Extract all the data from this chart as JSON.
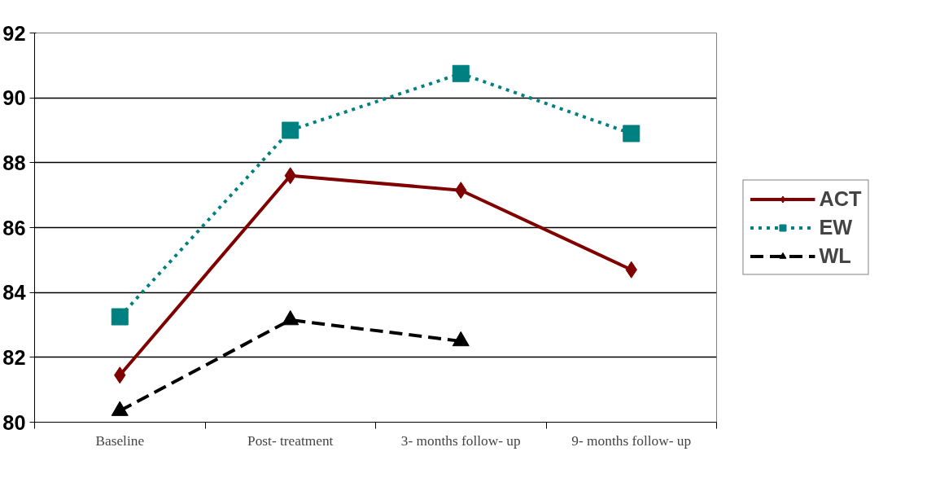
{
  "chart_data": {
    "type": "line",
    "categories": [
      "Baseline",
      "Post- treatment",
      "3- months follow- up",
      "9- months follow- up"
    ],
    "series": [
      {
        "name": "ACT",
        "color": "#800000",
        "values": [
          81.45,
          87.6,
          87.15,
          84.7
        ],
        "marker": "diamond",
        "line_style": "solid"
      },
      {
        "name": "EW",
        "color": "#008080",
        "values": [
          83.25,
          89.0,
          90.75,
          88.9
        ],
        "marker": "square",
        "line_style": "dotted"
      },
      {
        "name": "WL",
        "color": "#000000",
        "values": [
          80.35,
          83.15,
          82.5,
          null
        ],
        "marker": "triangle",
        "line_style": "dashed"
      }
    ],
    "ylim": [
      80,
      92
    ],
    "yticks": [
      80,
      82,
      84,
      86,
      88,
      90,
      92
    ],
    "grid": "y",
    "legend": "right"
  }
}
